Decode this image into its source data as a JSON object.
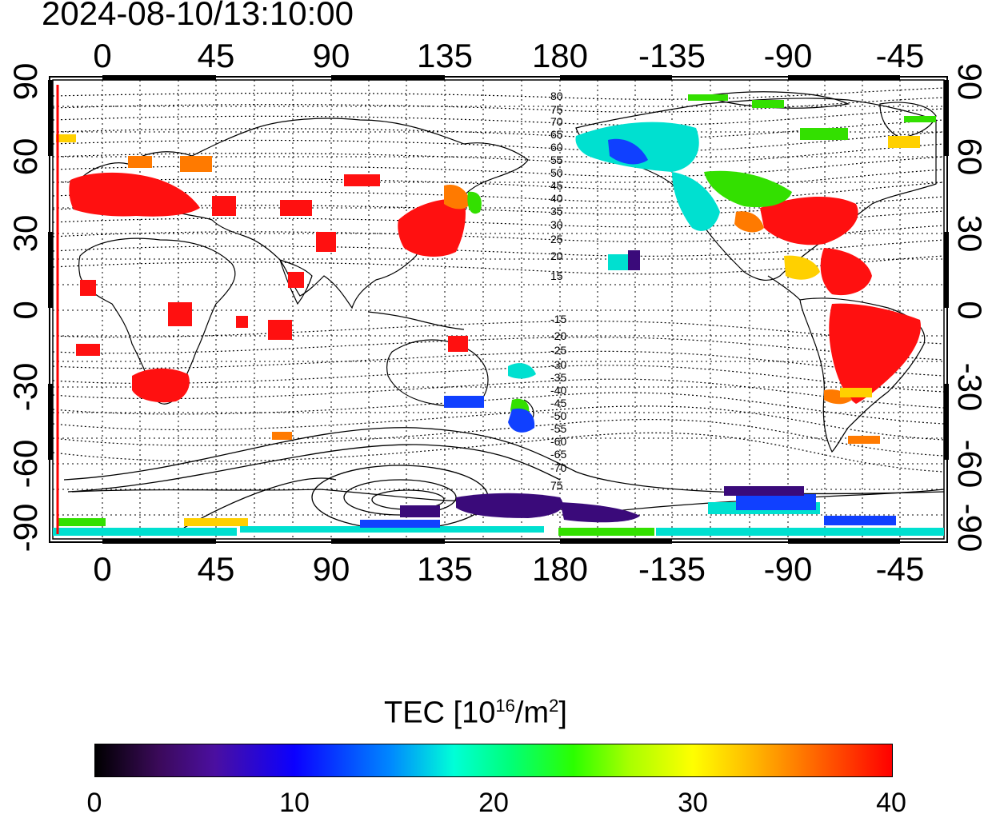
{
  "timestamp": "2024-08-10/13:10:00",
  "map": {
    "lon_ticks_top": [
      "0",
      "45",
      "90",
      "135",
      "180",
      "-135",
      "-90",
      "-45"
    ],
    "lon_ticks_bottom": [
      "0",
      "45",
      "90",
      "135",
      "180",
      "-135",
      "-90",
      "-45"
    ],
    "lat_ticks_left": [
      "90",
      "60",
      "30",
      "0",
      "-30",
      "-60",
      "-90"
    ],
    "lat_ticks_right": [
      "90",
      "60",
      "30",
      "0",
      "-30",
      "-60",
      "-90"
    ],
    "contour_labels_north": [
      "80",
      "75",
      "70",
      "65",
      "60",
      "55",
      "50",
      "45",
      "40",
      "35",
      "30",
      "25",
      "20",
      "15"
    ],
    "contour_labels_south": [
      "-15",
      "-20",
      "-25",
      "-30",
      "-35",
      "-40",
      "-45",
      "-50",
      "-55",
      "-60",
      "-65",
      "-70",
      "75"
    ]
  },
  "colorbar": {
    "title_main": "TEC  [10",
    "title_exp1": "16",
    "title_mid": "/m",
    "title_exp2": "2",
    "title_end": "]",
    "ticks": [
      "0",
      "10",
      "20",
      "30",
      "40"
    ],
    "range": [
      0,
      40
    ]
  },
  "colors": {
    "red_marker": "#ff0000",
    "high_tec": "#ff1a00",
    "low_tec": "#2a0a4a"
  }
}
